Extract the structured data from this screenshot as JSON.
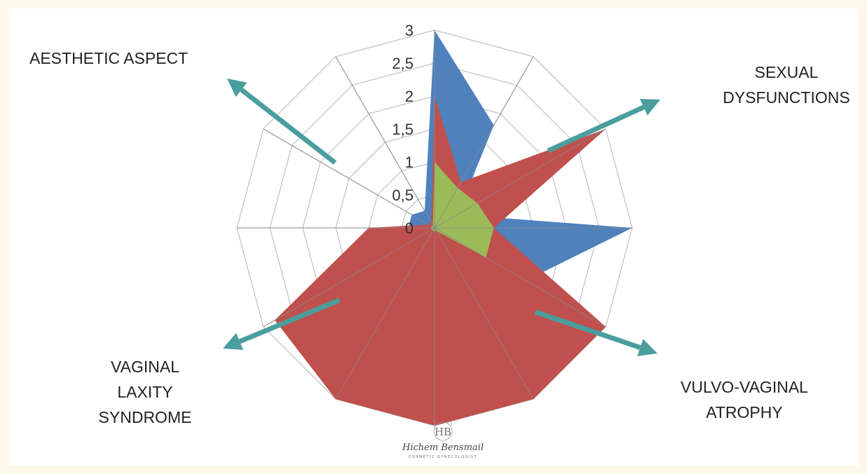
{
  "chart_data": {
    "type": "radar",
    "axes_count": 12,
    "rlim": [
      0,
      3
    ],
    "rticks": [
      "0",
      "0,5",
      "1",
      "1,5",
      "2",
      "2,5",
      "3"
    ],
    "grid": true,
    "series": [
      {
        "color": "#4f81bd",
        "values": [
          3,
          1.8,
          0.4,
          3,
          1.6,
          0.9,
          0.5,
          0.9,
          0.6,
          0.4,
          0.4,
          0.3
        ]
      },
      {
        "color": "#c0504d",
        "values": [
          2,
          0.8,
          3,
          0.9,
          3,
          3,
          3,
          3,
          2.8,
          1,
          0.1,
          0.1
        ]
      },
      {
        "color": "#9bbb59",
        "values": [
          1,
          0.7,
          0.75,
          0.9,
          0.9,
          0.05,
          0.05,
          0.05,
          0.05,
          0.05,
          0.05,
          0.05
        ]
      }
    ]
  },
  "annotations": {
    "aesthetic": "AESTHETIC ASPECT",
    "sexual": "SEXUAL\nDYSFUNCTIONS",
    "vaginal": "VAGINAL\nLAXITY\nSYNDROME",
    "vulvo": "VULVO-VAGINAL\nATROPHY",
    "arrow_color": "#4a9e9e"
  },
  "watermark": {
    "monogram": "HB",
    "signature": "Hichem Bensmail",
    "subtitle": "COSMETIC GYNECOLOGIST"
  }
}
